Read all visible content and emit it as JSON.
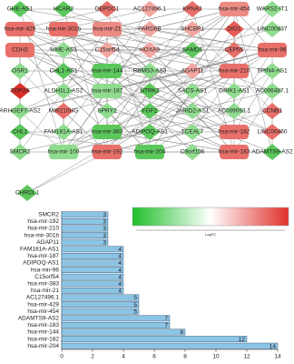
{
  "network": {
    "nodes": [
      {
        "label": "GHE-AS1",
        "shape": "diamond",
        "color": "#5cc85c"
      },
      {
        "label": "HCAR2",
        "shape": "diamond",
        "color": "#5cc85c"
      },
      {
        "label": "DEPDC1",
        "shape": "diamond",
        "color": "#e9706a"
      },
      {
        "label": "AC127496.1",
        "shape": "diamond",
        "color": "#f3a6a1"
      },
      {
        "label": "KPNA2",
        "shape": "diamond",
        "color": "#e9706a"
      },
      {
        "label": "hsa-mir-454",
        "shape": "rect",
        "color": "#ec8a84"
      },
      {
        "label": "WARS2-IT1",
        "shape": "diamond",
        "color": "#8fdc8f"
      },
      {
        "label": "hsa-mir-429",
        "shape": "rect",
        "color": "#e9706a"
      },
      {
        "label": "hsa-mir-301b",
        "shape": "rect",
        "color": "#e9706a"
      },
      {
        "label": "hsa-mir-21",
        "shape": "rect",
        "color": "#ec8a84"
      },
      {
        "label": "PARD6B",
        "shape": "diamond",
        "color": "#f3a6a1"
      },
      {
        "label": "SHCBP1",
        "shape": "diamond",
        "color": "#f3a6a1"
      },
      {
        "label": "DIO1",
        "shape": "diamond",
        "color": "#e65b55"
      },
      {
        "label": "LINC00837",
        "shape": "diamond",
        "color": "#8fdc8f"
      },
      {
        "label": "CDH2",
        "shape": "rect",
        "color": "#e9706a"
      },
      {
        "label": "MME-AS1",
        "shape": "diamond",
        "color": "#8fdc8f"
      },
      {
        "label": "C15orf54",
        "shape": "diamond",
        "color": "#f3a6a1"
      },
      {
        "label": "HOXA9",
        "shape": "diamond",
        "color": "#f3a6a1"
      },
      {
        "label": "SAMD5",
        "shape": "diamond",
        "color": "#5cc85c"
      },
      {
        "label": "CEP55",
        "shape": "diamond",
        "color": "#e9706a"
      },
      {
        "label": "hsa-mir-96",
        "shape": "rect",
        "color": "#e9706a"
      },
      {
        "label": "OSR1",
        "shape": "diamond",
        "color": "#8fdc8f"
      },
      {
        "label": "CHL1-AS1",
        "shape": "diamond",
        "color": "#5cc85c"
      },
      {
        "label": "hsa-mir-144",
        "shape": "rect",
        "color": "#5cc85c"
      },
      {
        "label": "RBMS3-AS3",
        "shape": "diamond",
        "color": "#8fdc8f"
      },
      {
        "label": "AGAP11",
        "shape": "diamond",
        "color": "#f3a6a1"
      },
      {
        "label": "hsa-mir-210",
        "shape": "rect",
        "color": "#e9706a"
      },
      {
        "label": "SPIN4-AS1",
        "shape": "diamond",
        "color": "#8fdc8f"
      },
      {
        "label": "TOP2A",
        "shape": "diamond",
        "color": "#d9302a"
      },
      {
        "label": "ALDH1L1-AS2",
        "shape": "diamond",
        "color": "#8fdc8f"
      },
      {
        "label": "hsa-mir-187",
        "shape": "rect",
        "color": "#8fdc8f"
      },
      {
        "label": "NTRK2",
        "shape": "diamond",
        "color": "#5cc85c"
      },
      {
        "label": "SACS-AS1",
        "shape": "diamond",
        "color": "#8fdc8f"
      },
      {
        "label": "GRIK1-AS1",
        "shape": "diamond",
        "color": "#8fdc8f"
      },
      {
        "label": "AC006487.1",
        "shape": "diamond",
        "color": "#8fdc8f"
      },
      {
        "label": "ARHGEF7-AS2",
        "shape": "diamond",
        "color": "#8fdc8f"
      },
      {
        "label": "MIR210HG",
        "shape": "diamond",
        "color": "#e9706a"
      },
      {
        "label": "SPRY2",
        "shape": "diamond",
        "color": "#8fdc8f"
      },
      {
        "label": "FGF2",
        "shape": "diamond",
        "color": "#5cc85c"
      },
      {
        "label": "JARID2-AS1",
        "shape": "diamond",
        "color": "#8fdc8f"
      },
      {
        "label": "AC009093.1",
        "shape": "diamond",
        "color": "#8fdc8f"
      },
      {
        "label": "CCNB1",
        "shape": "diamond",
        "color": "#e9706a"
      },
      {
        "label": "CHL1",
        "shape": "diamond",
        "color": "#5cc85c"
      },
      {
        "label": "FAM181A-AS1",
        "shape": "diamond",
        "color": "#8fdc8f"
      },
      {
        "label": "hsa-mir-383",
        "shape": "rect",
        "color": "#5cc85c"
      },
      {
        "label": "ADIPOQ-AS1",
        "shape": "diamond",
        "color": "#5cc85c"
      },
      {
        "label": "TCEAL7",
        "shape": "diamond",
        "color": "#8fdc8f"
      },
      {
        "label": "hsa-mir-182",
        "shape": "rect",
        "color": "#e9706a"
      },
      {
        "label": "LINC00460",
        "shape": "diamond",
        "color": "#e9706a"
      },
      {
        "label": "SMCR2",
        "shape": "diamond",
        "color": "#8fdc8f"
      },
      {
        "label": "hsa-mir-100",
        "shape": "rect",
        "color": "#8fdc8f"
      },
      {
        "label": "hsa-mir-192",
        "shape": "rect",
        "color": "#e9706a"
      },
      {
        "label": "hsa-mir-204",
        "shape": "rect",
        "color": "#5cc85c"
      },
      {
        "label": "C9orf106",
        "shape": "diamond",
        "color": "#8fdc8f"
      },
      {
        "label": "hsa-mir-183",
        "shape": "rect",
        "color": "#e9706a"
      },
      {
        "label": "ADAMTS9-AS2",
        "shape": "diamond",
        "color": "#5cc85c"
      },
      {
        "label": "CHRDL1",
        "shape": "diamond",
        "color": "#5cc85c"
      }
    ]
  },
  "legend_title": "LogFC",
  "chart_data": {
    "type": "bar",
    "orientation": "horizontal",
    "categories": [
      "SMCR2",
      "hsa-mir-192",
      "hsa-mir-210",
      "hsa-mir-301b",
      "AGAP11",
      "FAM181A-AS1",
      "hsa-mir-187",
      "ADIPOQ-AS1",
      "hsa-mir-96",
      "C15orf54",
      "hsa-mir-383",
      "hsa-mir-21",
      "AC127496.1",
      "hsa-mir-429",
      "hsa-mir-454",
      "ADAMTS9-AS2",
      "hsa-mir-183",
      "hsa-mir-144",
      "hsa-mir-182",
      "hsa-mir-204"
    ],
    "values": [
      3,
      3,
      3,
      3,
      3,
      4,
      4,
      4,
      4,
      4,
      4,
      4,
      5,
      5,
      5,
      7,
      7,
      8,
      12,
      14
    ],
    "color": "#8cc4e6",
    "xlim": [
      0,
      14
    ],
    "xticks": [
      0,
      2,
      4,
      6,
      8,
      10,
      12,
      14
    ]
  }
}
